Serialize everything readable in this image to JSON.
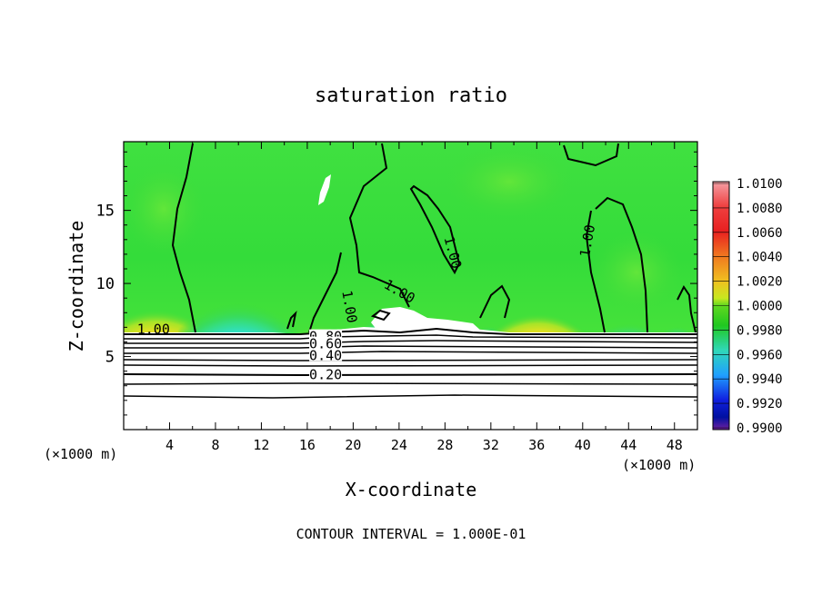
{
  "chart_data": {
    "type": "contour",
    "title": "saturation ratio",
    "xlabel": "X-coordinate",
    "ylabel": "Z-coordinate",
    "x_unit": "(×1000 m)",
    "x_ticks": [
      4,
      8,
      12,
      16,
      20,
      24,
      28,
      32,
      36,
      40,
      44,
      48
    ],
    "y_ticks": [
      5,
      10,
      15
    ],
    "xlim": [
      0,
      50
    ],
    "ylim": [
      0,
      19.7
    ],
    "contour_interval_label": "CONTOUR INTERVAL = 1.000E-01",
    "contour_labels": [
      {
        "text": "1.00",
        "x": 2.6,
        "z": 6.8
      },
      {
        "text": "0.80",
        "x": 17.6,
        "z": 6.3
      },
      {
        "text": "0.60",
        "x": 17.6,
        "z": 5.8
      },
      {
        "text": "0.40",
        "x": 17.6,
        "z": 5.0
      },
      {
        "text": "0.20",
        "x": 17.6,
        "z": 3.7
      },
      {
        "text": "1.00",
        "x": 19.6,
        "z": 8.4
      },
      {
        "text": "1.00",
        "x": 24.0,
        "z": 9.4
      },
      {
        "text": "1.00",
        "x": 28.6,
        "z": 12.1
      },
      {
        "text": "1.00",
        "x": 40.5,
        "z": 12.9
      }
    ],
    "colorbar": {
      "levels": [
        "1.0100",
        "1.0080",
        "1.0060",
        "1.0040",
        "1.0020",
        "1.0000",
        "0.9980",
        "0.9960",
        "0.9940",
        "0.9920",
        "0.9900"
      ],
      "colors": [
        "#f5a0a6",
        "#ef4040",
        "#e82020",
        "#f07820",
        "#f0b020",
        "#f0f020",
        "#a0e020",
        "#20c820",
        "#30d8b8",
        "#20a0ff",
        "#1020e0",
        "#0010a0",
        "#7020a0"
      ]
    },
    "colors": {
      "ambient": "#2ed84a",
      "high": "#e82020",
      "low": "#0a1ad0",
      "contour": "#000000"
    }
  }
}
